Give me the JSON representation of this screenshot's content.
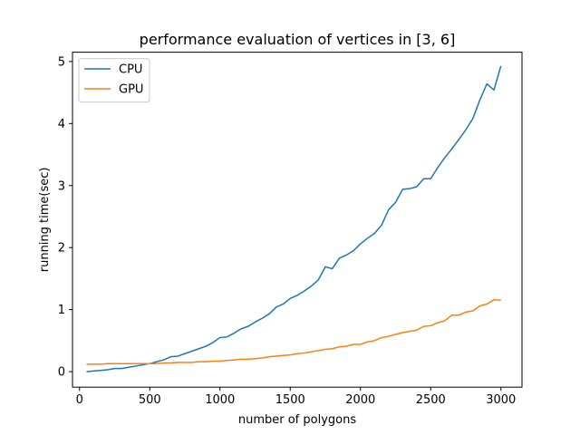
{
  "chart_data": {
    "type": "line",
    "title": "performance evaluation of vertices in [3, 6]",
    "xlabel": "number of polygons",
    "ylabel": "running time(sec)",
    "xlim": [
      -50,
      3150
    ],
    "ylim": [
      -0.25,
      5.15
    ],
    "xticks": [
      0,
      500,
      1000,
      1500,
      2000,
      2500,
      3000
    ],
    "yticks": [
      0,
      1,
      2,
      3,
      4,
      5
    ],
    "grid": false,
    "legend": "top-left",
    "x": [
      50,
      100,
      150,
      200,
      250,
      300,
      350,
      400,
      450,
      500,
      550,
      600,
      650,
      700,
      750,
      800,
      850,
      900,
      950,
      1000,
      1050,
      1100,
      1150,
      1200,
      1250,
      1300,
      1350,
      1400,
      1450,
      1500,
      1550,
      1600,
      1650,
      1700,
      1750,
      1800,
      1850,
      1900,
      1950,
      2000,
      2050,
      2100,
      2150,
      2200,
      2250,
      2300,
      2350,
      2400,
      2450,
      2500,
      2550,
      2600,
      2650,
      2700,
      2750,
      2800,
      2850,
      2900,
      2950,
      3000
    ],
    "series": [
      {
        "name": "CPU",
        "color": "#1f77b4",
        "values": [
          0.0,
          0.01,
          0.02,
          0.03,
          0.05,
          0.05,
          0.07,
          0.09,
          0.11,
          0.13,
          0.16,
          0.19,
          0.24,
          0.25,
          0.29,
          0.33,
          0.37,
          0.41,
          0.47,
          0.55,
          0.56,
          0.62,
          0.69,
          0.73,
          0.8,
          0.86,
          0.93,
          1.04,
          1.09,
          1.18,
          1.23,
          1.3,
          1.38,
          1.48,
          1.69,
          1.66,
          1.83,
          1.88,
          1.95,
          2.06,
          2.15,
          2.23,
          2.36,
          2.61,
          2.73,
          2.94,
          2.95,
          2.98,
          3.11,
          3.11,
          3.29,
          3.45,
          3.59,
          3.74,
          3.9,
          4.08,
          4.38,
          4.64,
          4.54,
          4.93
        ]
      },
      {
        "name": "GPU",
        "color": "#ff7f0e",
        "values": [
          0.12,
          0.12,
          0.12,
          0.13,
          0.13,
          0.13,
          0.13,
          0.13,
          0.13,
          0.13,
          0.13,
          0.14,
          0.14,
          0.15,
          0.15,
          0.15,
          0.16,
          0.16,
          0.17,
          0.17,
          0.18,
          0.19,
          0.2,
          0.2,
          0.21,
          0.22,
          0.24,
          0.25,
          0.26,
          0.27,
          0.29,
          0.3,
          0.32,
          0.34,
          0.36,
          0.37,
          0.4,
          0.41,
          0.44,
          0.44,
          0.48,
          0.5,
          0.55,
          0.57,
          0.6,
          0.63,
          0.65,
          0.67,
          0.73,
          0.74,
          0.79,
          0.82,
          0.91,
          0.91,
          0.96,
          0.98,
          1.06,
          1.09,
          1.16,
          1.15
        ]
      }
    ]
  }
}
